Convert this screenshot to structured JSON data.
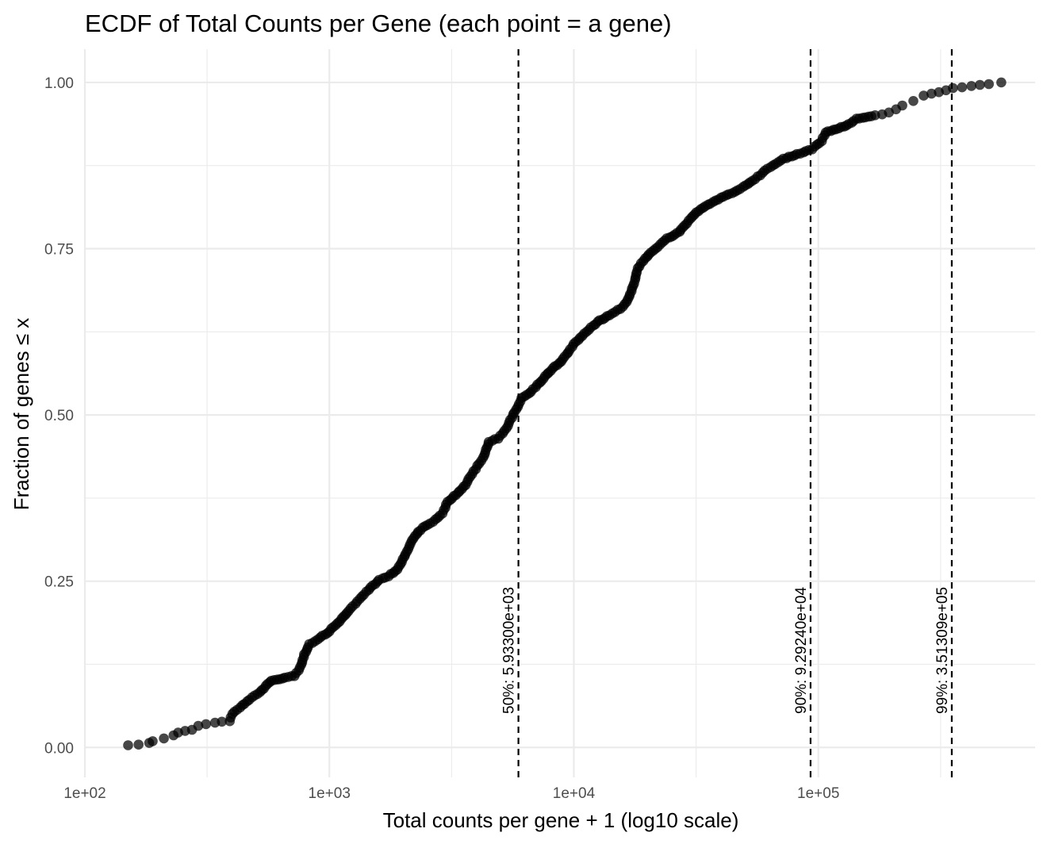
{
  "chart_data": {
    "type": "scatter",
    "title": "ECDF of Total Counts per Gene (each point = a gene)",
    "xlabel": "Total counts per gene + 1 (log10 scale)",
    "ylabel": "Fraction of genes ≤ x",
    "x_scale": "log10",
    "xlim": [
      100,
      770000
    ],
    "ylim": [
      -0.045,
      1.05
    ],
    "x_ticks": [
      {
        "value": 100,
        "label": "1e+02"
      },
      {
        "value": 1000,
        "label": "1e+03"
      },
      {
        "value": 10000,
        "label": "1e+04"
      },
      {
        "value": 100000,
        "label": "1e+05"
      }
    ],
    "y_ticks": [
      {
        "value": 0,
        "label": "0.00"
      },
      {
        "value": 0.25,
        "label": "0.25"
      },
      {
        "value": 0.5,
        "label": "0.50"
      },
      {
        "value": 0.75,
        "label": "0.75"
      },
      {
        "value": 1,
        "label": "1.00"
      }
    ],
    "quantile_lines": [
      {
        "quantile": "50%",
        "value": 5933,
        "label": "50%: 5.93300e+03"
      },
      {
        "quantile": "90%",
        "value": 92924,
        "label": "90%: 9.29240e+04"
      },
      {
        "quantile": "99%",
        "value": 351309,
        "label": "99%: 3.51309e+05"
      }
    ],
    "series": [
      {
        "name": "genes",
        "point_color": "#000000",
        "curve": [
          [
            150,
            0.003
          ],
          [
            183,
            0.007
          ],
          [
            190,
            0.01
          ],
          [
            210,
            0.014
          ],
          [
            230,
            0.018
          ],
          [
            240,
            0.022
          ],
          [
            275,
            0.027
          ],
          [
            290,
            0.033
          ],
          [
            340,
            0.037
          ],
          [
            390,
            0.04
          ],
          [
            400,
            0.05
          ],
          [
            430,
            0.06
          ],
          [
            470,
            0.072
          ],
          [
            520,
            0.083
          ],
          [
            560,
            0.095
          ],
          [
            580,
            0.1
          ],
          [
            660,
            0.105
          ],
          [
            720,
            0.108
          ],
          [
            760,
            0.12
          ],
          [
            790,
            0.14
          ],
          [
            830,
            0.155
          ],
          [
            900,
            0.163
          ],
          [
            1000,
            0.175
          ],
          [
            1100,
            0.19
          ],
          [
            1200,
            0.205
          ],
          [
            1300,
            0.22
          ],
          [
            1450,
            0.237
          ],
          [
            1600,
            0.252
          ],
          [
            1750,
            0.258
          ],
          [
            1900,
            0.268
          ],
          [
            2050,
            0.29
          ],
          [
            2200,
            0.315
          ],
          [
            2400,
            0.33
          ],
          [
            2650,
            0.34
          ],
          [
            2900,
            0.352
          ],
          [
            3050,
            0.37
          ],
          [
            3300,
            0.38
          ],
          [
            3600,
            0.395
          ],
          [
            3900,
            0.415
          ],
          [
            4250,
            0.435
          ],
          [
            4500,
            0.46
          ],
          [
            4900,
            0.465
          ],
          [
            5300,
            0.48
          ],
          [
            5650,
            0.5
          ],
          [
            6100,
            0.525
          ],
          [
            6700,
            0.535
          ],
          [
            7500,
            0.555
          ],
          [
            8200,
            0.57
          ],
          [
            8900,
            0.58
          ],
          [
            9500,
            0.595
          ],
          [
            10200,
            0.61
          ],
          [
            11300,
            0.625
          ],
          [
            12500,
            0.64
          ],
          [
            14000,
            0.65
          ],
          [
            15500,
            0.66
          ],
          [
            16500,
            0.67
          ],
          [
            17300,
            0.69
          ],
          [
            18300,
            0.72
          ],
          [
            19500,
            0.735
          ],
          [
            21500,
            0.75
          ],
          [
            24000,
            0.765
          ],
          [
            27000,
            0.775
          ],
          [
            30000,
            0.795
          ],
          [
            33000,
            0.81
          ],
          [
            37000,
            0.82
          ],
          [
            42000,
            0.83
          ],
          [
            48000,
            0.84
          ],
          [
            55000,
            0.855
          ],
          [
            62000,
            0.87
          ],
          [
            72000,
            0.885
          ],
          [
            82000,
            0.892
          ],
          [
            94000,
            0.9
          ],
          [
            103000,
            0.912
          ],
          [
            107000,
            0.925
          ],
          [
            118000,
            0.93
          ],
          [
            130000,
            0.935
          ],
          [
            143000,
            0.945
          ],
          [
            170000,
            0.95
          ],
          [
            195000,
            0.955
          ],
          [
            220000,
            0.965
          ],
          [
            245000,
            0.972
          ],
          [
            270000,
            0.98
          ],
          [
            310000,
            0.985
          ],
          [
            355000,
            0.992
          ],
          [
            500000,
            0.997
          ],
          [
            560000,
            1.0
          ]
        ]
      }
    ]
  }
}
